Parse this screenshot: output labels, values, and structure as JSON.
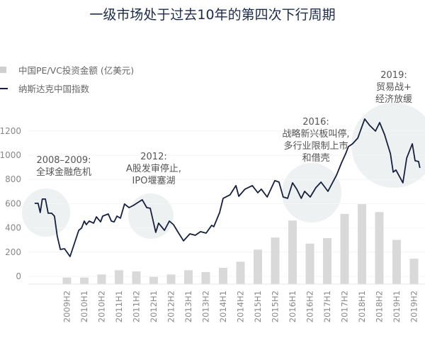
{
  "chart_data": {
    "type": "bar+line",
    "title": "一级市场处于过去10年的第四次下行周期",
    "legend": {
      "placement": "top-left",
      "entries": [
        "中国PE/VC投资金额 (亿美元)",
        "纳斯达克中国指数"
      ]
    },
    "yaxis": {
      "ticks": [
        "0",
        "200",
        "400",
        "600",
        "800",
        "1000",
        "1200"
      ],
      "ylim": [
        0,
        1300
      ]
    },
    "categories": [
      "2009H2",
      "2010H1",
      "2010H2",
      "2011H1",
      "2011H2",
      "2012H1",
      "2012H2",
      "2013H1",
      "2013H2",
      "2014H1",
      "2014H2",
      "2015H1",
      "2015H2",
      "2016H1",
      "2016H2",
      "2017H1",
      "2017H2",
      "2018H1",
      "2018H2",
      "2019H1",
      "2019H2"
    ],
    "series": [
      {
        "name": "中国PE/VC投资金额 (亿美元)",
        "type": "bar",
        "color": "#d9d9d9",
        "values": [
          55,
          55,
          80,
          115,
          105,
          60,
          80,
          115,
          100,
          135,
          185,
          285,
          385,
          525,
          335,
          380,
          580,
          660,
          595,
          365,
          210
        ]
      },
      {
        "name": "纳斯达克中国指数",
        "type": "line",
        "color": "#16203d",
        "points": [
          [
            2008.82,
            603
          ],
          [
            2008.92,
            603
          ],
          [
            2008.98,
            527
          ],
          [
            2009.04,
            638
          ],
          [
            2009.13,
            638
          ],
          [
            2009.21,
            521
          ],
          [
            2009.31,
            521
          ],
          [
            2009.39,
            497
          ],
          [
            2009.47,
            333
          ],
          [
            2009.56,
            222
          ],
          [
            2009.68,
            228
          ],
          [
            2009.84,
            164
          ],
          [
            2010.09,
            380
          ],
          [
            2010.17,
            398
          ],
          [
            2010.25,
            456
          ],
          [
            2010.31,
            427
          ],
          [
            2010.39,
            456
          ],
          [
            2010.52,
            439
          ],
          [
            2010.6,
            491
          ],
          [
            2010.72,
            450
          ],
          [
            2010.78,
            497
          ],
          [
            2010.94,
            515
          ],
          [
            2011.03,
            456
          ],
          [
            2011.11,
            450
          ],
          [
            2011.19,
            497
          ],
          [
            2011.29,
            480
          ],
          [
            2011.41,
            597
          ],
          [
            2011.54,
            567
          ],
          [
            2011.66,
            585
          ],
          [
            2011.76,
            603
          ],
          [
            2011.92,
            632
          ],
          [
            2012.05,
            567
          ],
          [
            2012.15,
            562
          ],
          [
            2012.31,
            363
          ],
          [
            2012.39,
            439
          ],
          [
            2012.56,
            380
          ],
          [
            2012.7,
            456
          ],
          [
            2012.82,
            427
          ],
          [
            2012.98,
            351
          ],
          [
            2013.11,
            293
          ],
          [
            2013.29,
            351
          ],
          [
            2013.45,
            339
          ],
          [
            2013.6,
            369
          ],
          [
            2013.76,
            357
          ],
          [
            2013.92,
            421
          ],
          [
            2013.98,
            410
          ],
          [
            2014.15,
            527
          ],
          [
            2014.25,
            644
          ],
          [
            2014.45,
            673
          ],
          [
            2014.62,
            749
          ],
          [
            2014.7,
            661
          ],
          [
            2014.88,
            720
          ],
          [
            2015.09,
            749
          ],
          [
            2015.25,
            690
          ],
          [
            2015.35,
            720
          ],
          [
            2015.52,
            655
          ],
          [
            2015.74,
            790
          ],
          [
            2015.86,
            778
          ],
          [
            2015.98,
            655
          ],
          [
            2016.11,
            644
          ],
          [
            2016.25,
            772
          ],
          [
            2016.37,
            720
          ],
          [
            2016.5,
            644
          ],
          [
            2016.6,
            702
          ],
          [
            2016.76,
            655
          ],
          [
            2016.92,
            731
          ],
          [
            2017.07,
            778
          ],
          [
            2017.27,
            702
          ],
          [
            2017.52,
            837
          ],
          [
            2017.66,
            936
          ],
          [
            2017.78,
            1012
          ],
          [
            2017.86,
            1071
          ],
          [
            2017.98,
            1094
          ],
          [
            2018.13,
            1141
          ],
          [
            2018.33,
            1299
          ],
          [
            2018.47,
            1246
          ],
          [
            2018.64,
            1199
          ],
          [
            2018.76,
            1269
          ],
          [
            2018.9,
            1170
          ],
          [
            2019.07,
            1012
          ],
          [
            2019.15,
            860
          ],
          [
            2019.23,
            878
          ],
          [
            2019.43,
            772
          ],
          [
            2019.54,
            977
          ],
          [
            2019.7,
            1094
          ],
          [
            2019.78,
            954
          ],
          [
            2019.88,
            948
          ],
          [
            2019.92,
            895
          ]
        ]
      }
    ],
    "annotations": [
      {
        "lines": [
          "2008–2009:",
          "全球金融危机"
        ]
      },
      {
        "lines": [
          "2012:",
          "A股发审停止,",
          "IPO堰塞湖"
        ]
      },
      {
        "lines": [
          "2016:",
          "战略新兴板叫停,",
          "多行业限制上市",
          "和借壳"
        ]
      },
      {
        "lines": [
          "2019:",
          "贸易战+",
          "经济放缓"
        ]
      }
    ],
    "grid": true
  }
}
